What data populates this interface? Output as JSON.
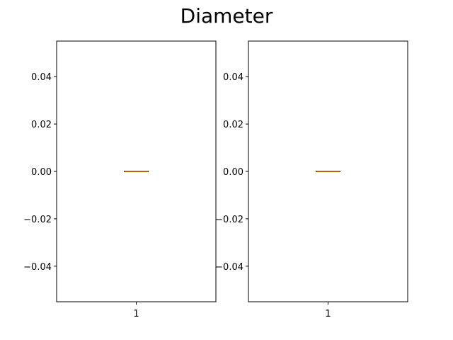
{
  "chart_data": {
    "title": "Diameter",
    "type": "box",
    "subplots": [
      {
        "categories": [
          "1"
        ],
        "ylim": [
          -0.055,
          0.055
        ],
        "yticks": [
          0.04,
          0.02,
          0.0,
          -0.02,
          -0.04
        ],
        "ytick_labels": [
          "0.04",
          "0.02",
          "0.00",
          "−0.02",
          "−0.04"
        ],
        "box": {
          "min": 0,
          "q1": 0,
          "median": 0,
          "q3": 0,
          "max": 0
        },
        "grid": false
      },
      {
        "categories": [
          "1"
        ],
        "ylim": [
          -0.055,
          0.055
        ],
        "yticks": [
          0.04,
          0.02,
          0.0,
          -0.02,
          -0.04
        ],
        "ytick_labels": [
          "0.04",
          "0.02",
          "0.00",
          "−0.02",
          "−0.04"
        ],
        "box": {
          "min": 0,
          "q1": 0,
          "median": 0,
          "q3": 0,
          "max": 0
        },
        "grid": false
      }
    ],
    "colors": {
      "box": "#000000",
      "median": "#ff7f0e",
      "axes": "#000000"
    }
  }
}
